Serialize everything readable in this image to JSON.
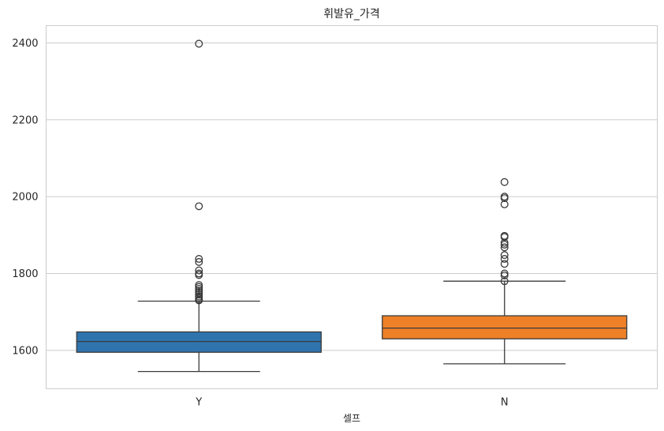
{
  "chart_data": {
    "type": "box",
    "title": "휘발유_가격",
    "xlabel": "셀프",
    "ylabel": "",
    "categories": [
      "Y",
      "N"
    ],
    "ylim": [
      1500,
      2445
    ],
    "yticks": [
      1600,
      1800,
      2000,
      2200,
      2400
    ],
    "grid": true,
    "boxes": [
      {
        "category": "Y",
        "color": "#2f74ad",
        "whisker_low": 1545,
        "q1": 1595,
        "median": 1623,
        "q3": 1648,
        "whisker_high": 1728,
        "fliers": [
          2398,
          1975,
          1838,
          1830,
          1808,
          1800,
          1796,
          1770,
          1765,
          1760,
          1755,
          1750,
          1745,
          1740,
          1736,
          1732,
          1730
        ]
      },
      {
        "category": "N",
        "color": "#ee8027",
        "whisker_low": 1565,
        "q1": 1630,
        "median": 1658,
        "q3": 1690,
        "whisker_high": 1780,
        "fliers": [
          2038,
          2000,
          1996,
          1980,
          1898,
          1895,
          1880,
          1875,
          1868,
          1848,
          1838,
          1825,
          1800,
          1795,
          1780
        ]
      }
    ]
  }
}
